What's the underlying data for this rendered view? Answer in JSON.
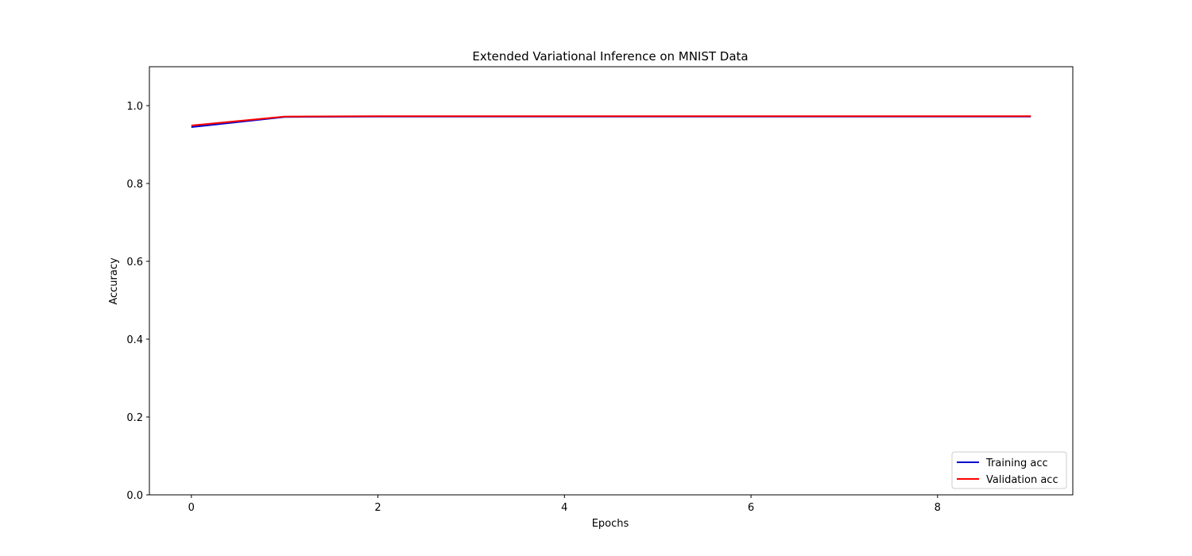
{
  "chart_data": {
    "type": "line",
    "title": "Extended Variational Inference on MNIST Data",
    "xlabel": "Epochs",
    "ylabel": "Accuracy",
    "x": [
      0,
      1,
      2,
      3,
      4,
      5,
      6,
      7,
      8,
      9
    ],
    "series": [
      {
        "name": "Training acc",
        "color": "#0000cc",
        "values": [
          0.945,
          0.971,
          0.972,
          0.972,
          0.972,
          0.972,
          0.972,
          0.972,
          0.972,
          0.972
        ]
      },
      {
        "name": "Validation acc",
        "color": "#ff0000",
        "values": [
          0.949,
          0.972,
          0.973,
          0.973,
          0.973,
          0.973,
          0.973,
          0.973,
          0.973,
          0.973
        ]
      }
    ],
    "xlim": [
      -0.45,
      9.45
    ],
    "ylim": [
      0,
      1.1
    ],
    "xticks": [
      0,
      2,
      4,
      6,
      8
    ],
    "yticks": [
      0.0,
      0.2,
      0.4,
      0.6,
      0.8,
      1.0
    ],
    "xtick_labels": [
      "0",
      "2",
      "4",
      "6",
      "8"
    ],
    "ytick_labels": [
      "0.0",
      "0.2",
      "0.4",
      "0.6",
      "0.8",
      "1.0"
    ],
    "grid": false,
    "legend_position": "lower-right"
  }
}
